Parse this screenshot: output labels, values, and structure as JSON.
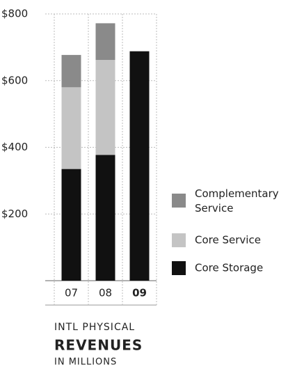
{
  "chart_data": {
    "type": "stacked_bar",
    "title": "INTL PHYSICAL",
    "subtitle": "REVENUES",
    "y_axis_label": "IN MILLIONS",
    "categories": [
      "07",
      "08",
      "09"
    ],
    "series": [
      {
        "name": "Complementary Service",
        "color": "#8a8a8a",
        "values": [
          97,
          110,
          null
        ]
      },
      {
        "name": "Core Service",
        "color": "#c4c4c4",
        "values": [
          245,
          285,
          null
        ]
      },
      {
        "name": "Core Storage",
        "color": "#111111",
        "values": [
          335,
          377,
          688
        ]
      }
    ],
    "ylim": [
      0,
      800
    ],
    "yticks": [
      {
        "value": 200,
        "label": "$200"
      },
      {
        "value": 400,
        "label": "$400"
      },
      {
        "value": 600,
        "label": "$600"
      },
      {
        "value": 800,
        "label": "$800"
      }
    ],
    "grid": true,
    "legend": "right"
  }
}
